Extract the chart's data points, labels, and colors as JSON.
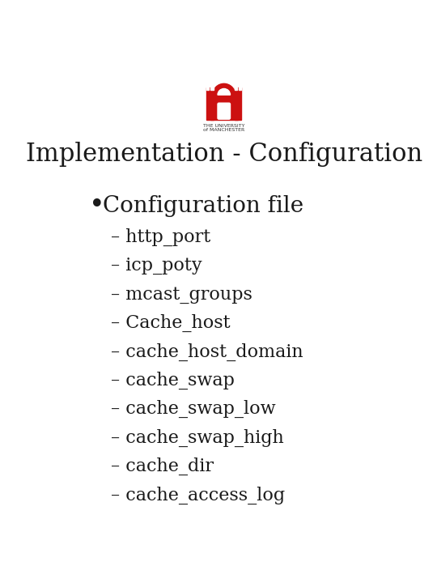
{
  "title": "Implementation - Configuration",
  "background_color": "#ffffff",
  "title_color": "#1a1a1a",
  "title_fontsize": 22,
  "title_fontweight": "normal",
  "bullet_text": "Configuration file",
  "bullet_fontsize": 20,
  "bullet_color": "#1a1a1a",
  "sub_items": [
    "http_port",
    "icp_poty",
    "mcast_groups",
    "Cache_host",
    "cache_host_domain",
    "cache_swap",
    "cache_swap_low",
    "cache_swap_high",
    "cache_dir",
    "cache_access_log"
  ],
  "sub_fontsize": 16,
  "sub_color": "#1a1a1a",
  "dash_prefix": "– ",
  "logo_color": "#cc1111",
  "logo_text_color": "#333333"
}
